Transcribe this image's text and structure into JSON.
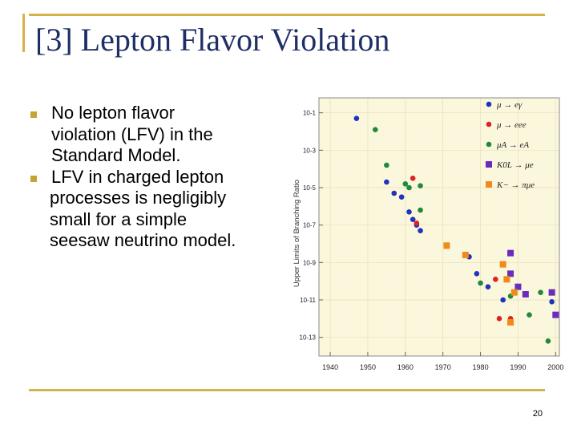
{
  "slide": {
    "title": "[3] Lepton Flavor Violation",
    "bullets": [
      {
        "lines": [
          "No lepton flavor",
          "violation (LFV) in the",
          "Standard Model."
        ]
      },
      {
        "lines": [
          "LFV in charged lepton",
          "processes is negligibly",
          "small for a simple",
          "seesaw  neutrino model."
        ]
      }
    ],
    "page_number": "20"
  },
  "colors": {
    "accent_rule": "#d6b24a",
    "title": "#1f2e66",
    "bullet_marker": "#c8a232",
    "plot_background": "#fbf7dc"
  },
  "chart_data": {
    "type": "scatter",
    "title": "",
    "xlabel": "",
    "ylabel": "Upper Limits of Branching Ratio",
    "xlim": [
      1937,
      2001
    ],
    "ylim_log10": [
      -14,
      -0.2
    ],
    "x_ticks": [
      1940,
      1950,
      1960,
      1970,
      1980,
      1990,
      2000
    ],
    "y_ticks": [
      {
        "exp": -1,
        "label": "10-1"
      },
      {
        "exp": -3,
        "label": "10-3"
      },
      {
        "exp": -5,
        "label": "10-5"
      },
      {
        "exp": -7,
        "label": "10-7"
      },
      {
        "exp": -9,
        "label": "10-9"
      },
      {
        "exp": -11,
        "label": "10-11"
      },
      {
        "exp": -13,
        "label": "10-13"
      }
    ],
    "grid": true,
    "legend_position": "top-right",
    "series": [
      {
        "name": "μ → eγ",
        "color": "#2233bb",
        "marker": "circle",
        "points": [
          [
            1947,
            -1.3
          ],
          [
            1955,
            -4.7
          ],
          [
            1957,
            -5.3
          ],
          [
            1959,
            -5.5
          ],
          [
            1961,
            -6.3
          ],
          [
            1962,
            -6.7
          ],
          [
            1963,
            -7.0
          ],
          [
            1964,
            -7.3
          ],
          [
            1977,
            -8.7
          ],
          [
            1979,
            -9.6
          ],
          [
            1982,
            -10.3
          ],
          [
            1986,
            -11.0
          ],
          [
            1999,
            -11.1
          ]
        ]
      },
      {
        "name": "μ → eee",
        "color": "#dd2222",
        "marker": "circle",
        "points": [
          [
            1962,
            -4.5
          ],
          [
            1963,
            -6.9
          ],
          [
            1976,
            -8.6
          ],
          [
            1984,
            -9.9
          ],
          [
            1985,
            -12.0
          ],
          [
            1988,
            -12.0
          ]
        ]
      },
      {
        "name": "μA → eA",
        "color": "#1e8a3a",
        "marker": "circle",
        "points": [
          [
            1952,
            -1.9
          ],
          [
            1955,
            -3.8
          ],
          [
            1960,
            -4.8
          ],
          [
            1961,
            -5.0
          ],
          [
            1964,
            -4.9
          ],
          [
            1964,
            -6.2
          ],
          [
            1980,
            -10.1
          ],
          [
            1988,
            -10.8
          ],
          [
            1993,
            -11.8
          ],
          [
            1996,
            -10.6
          ],
          [
            1998,
            -13.2
          ]
        ]
      },
      {
        "name": "K0L → μe",
        "color": "#6a2bc0",
        "marker": "square",
        "points": [
          [
            1988,
            -8.5
          ],
          [
            1988,
            -9.6
          ],
          [
            1990,
            -10.3
          ],
          [
            1992,
            -10.7
          ],
          [
            1999,
            -10.6
          ],
          [
            2000,
            -11.8
          ]
        ]
      },
      {
        "name": "K− → πμe",
        "color": "#f08a1a",
        "marker": "square",
        "points": [
          [
            1971,
            -8.1
          ],
          [
            1976,
            -8.6
          ],
          [
            1986,
            -9.1
          ],
          [
            1987,
            -9.9
          ],
          [
            1989,
            -10.6
          ],
          [
            1988,
            -12.2
          ]
        ]
      }
    ]
  }
}
